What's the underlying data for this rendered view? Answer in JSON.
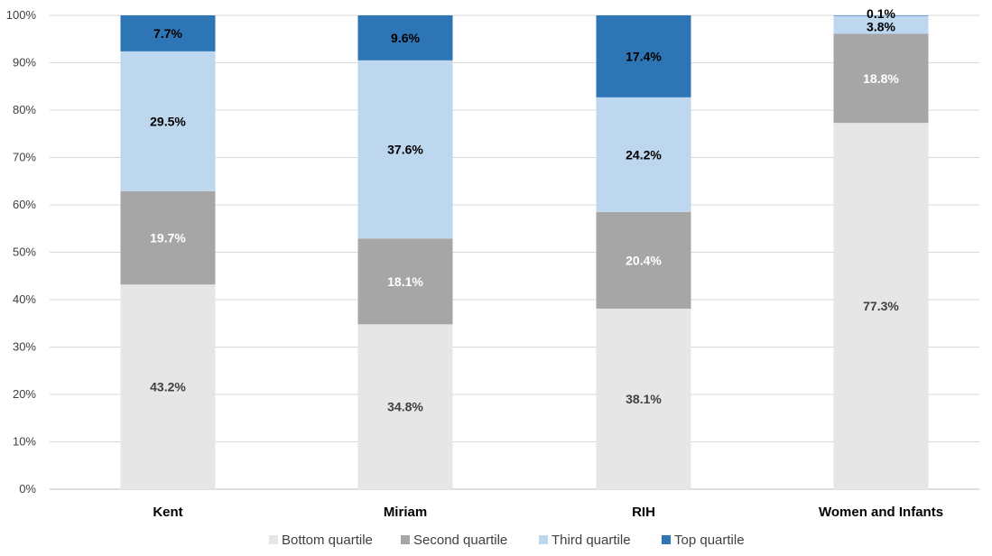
{
  "chart_data": {
    "type": "bar",
    "stacked": true,
    "categories": [
      "Kent",
      "Miriam",
      "RIH",
      "Women and Infants"
    ],
    "series": [
      {
        "name": "Bottom quartile",
        "color": "#e7e6e6",
        "label_color": "#404040",
        "values": [
          43.2,
          34.8,
          38.1,
          77.3
        ],
        "labels": [
          "43.2%",
          "34.8%",
          "38.1%",
          "77.3%"
        ]
      },
      {
        "name": "Second quartile",
        "color": "#a6a6a6",
        "label_color": "#ffffff",
        "values": [
          19.7,
          18.1,
          20.4,
          18.8
        ],
        "labels": [
          "19.7%",
          "18.1%",
          "20.4%",
          "18.8%"
        ]
      },
      {
        "name": "Third quartile",
        "color": "#bdd7ee",
        "label_color": "#000000",
        "values": [
          29.5,
          37.6,
          24.2,
          3.8
        ],
        "labels": [
          "29.5%",
          "37.6%",
          "24.2%",
          "3.8%"
        ]
      },
      {
        "name": "Top quartile",
        "color": "#2e75b6",
        "label_color": "#000000",
        "values": [
          7.7,
          9.6,
          17.4,
          0.1
        ],
        "labels": [
          "7.7%",
          "9.6%",
          "17.4%",
          "0.1%"
        ]
      }
    ],
    "y_ticks": [
      "0%",
      "10%",
      "20%",
      "30%",
      "40%",
      "50%",
      "60%",
      "70%",
      "80%",
      "90%",
      "100%"
    ],
    "ylim": [
      0,
      100
    ],
    "grid": true,
    "legend_position": "bottom",
    "title": "",
    "xlabel": "",
    "ylabel": ""
  }
}
